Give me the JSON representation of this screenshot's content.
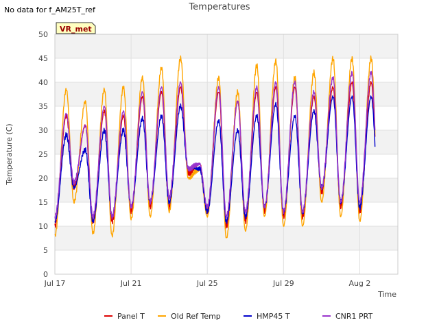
{
  "notice": "No data for f_AM25T_ref",
  "badge": "VR_met",
  "chart_data": {
    "type": "line",
    "title": "Temperatures",
    "xlabel": "Time",
    "ylabel": "Temperature (C)",
    "ylim": [
      0,
      50
    ],
    "xlim": [
      0,
      18
    ],
    "yticks": [
      0,
      5,
      10,
      15,
      20,
      25,
      30,
      35,
      40,
      45,
      50
    ],
    "xticks": [
      {
        "day": 0,
        "label": "Jul 17"
      },
      {
        "day": 4,
        "label": "Jul 21"
      },
      {
        "day": 8,
        "label": "Jul 25"
      },
      {
        "day": 12,
        "label": "Jul 29"
      },
      {
        "day": 16,
        "label": "Aug 2"
      }
    ],
    "grid": true,
    "legend_position": "bottom",
    "series": [
      {
        "name": "Panel T",
        "color": "#dd0000",
        "daily_min": [
          10,
          18,
          11,
          11,
          13,
          14,
          14,
          21,
          13,
          10,
          11,
          13,
          12,
          12,
          17,
          14,
          13,
          17
        ],
        "daily_max": [
          33,
          31,
          34,
          33,
          37,
          38,
          39,
          23,
          38,
          36,
          38,
          39,
          39,
          37,
          39,
          40,
          40
        ]
      },
      {
        "name": "Old Ref Temp",
        "color": "#ffa500",
        "daily_min": [
          8,
          15,
          8.5,
          8,
          11.5,
          12,
          13,
          20,
          12,
          7.5,
          9,
          12,
          10,
          10,
          15,
          12,
          11,
          14.5
        ],
        "daily_max": [
          38.5,
          36,
          38.5,
          39,
          41,
          43,
          45,
          22,
          41,
          38,
          43.5,
          44.5,
          41,
          42,
          45,
          45,
          45
        ]
      },
      {
        "name": "HMP45 T",
        "color": "#0000cc",
        "daily_min": [
          11,
          18,
          11,
          12,
          14,
          15,
          15,
          22,
          13,
          11,
          12,
          14,
          13,
          13,
          18,
          15,
          14,
          17
        ],
        "daily_max": [
          29,
          26,
          30,
          30,
          32.5,
          33,
          35,
          22,
          32,
          30,
          33,
          35.5,
          33,
          34,
          37,
          37,
          37
        ]
      },
      {
        "name": "CNR1 PRT",
        "color": "#9933cc",
        "daily_min": [
          12,
          19,
          12,
          12,
          14,
          15,
          16,
          22,
          14,
          12,
          13,
          14,
          13,
          13,
          18,
          15,
          15,
          18
        ],
        "daily_max": [
          33.5,
          31,
          35,
          34,
          38,
          39,
          40,
          23,
          39,
          36,
          39,
          40,
          40,
          38,
          41,
          42,
          42
        ]
      }
    ]
  }
}
